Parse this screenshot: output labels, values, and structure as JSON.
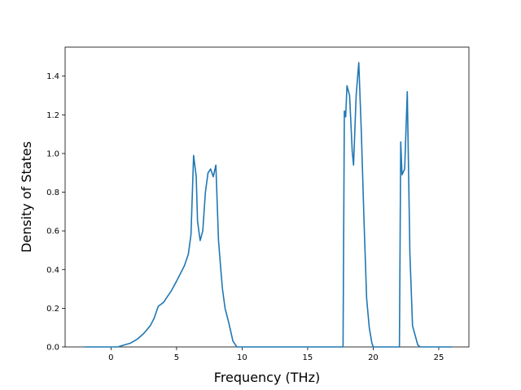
{
  "chart_data": {
    "type": "line",
    "title": "",
    "xlabel": "Frequency (THz)",
    "ylabel": "Density of States",
    "xlim": [
      -3.5,
      27.3
    ],
    "ylim": [
      0.0,
      1.55
    ],
    "xticks": [
      0,
      5,
      10,
      15,
      20,
      25
    ],
    "yticks": [
      0.0,
      0.2,
      0.4,
      0.6,
      0.8,
      1.0,
      1.2,
      1.4
    ],
    "xtick_labels": [
      "0",
      "5",
      "10",
      "15",
      "20",
      "25"
    ],
    "ytick_labels": [
      "0.0",
      "0.2",
      "0.4",
      "0.6",
      "0.8",
      "1.0",
      "1.2",
      "1.4"
    ],
    "grid": false,
    "series": [
      {
        "name": "",
        "color": "#1f77b4",
        "x": [
          -2.0,
          -1.0,
          0.0,
          0.5,
          1.0,
          1.5,
          2.0,
          2.5,
          3.0,
          3.3,
          3.6,
          3.8,
          4.0,
          4.3,
          4.6,
          5.0,
          5.3,
          5.6,
          5.9,
          6.1,
          6.3,
          6.5,
          6.6,
          6.8,
          7.0,
          7.2,
          7.4,
          7.6,
          7.8,
          8.0,
          8.2,
          8.4,
          8.5,
          8.7,
          9.0,
          9.3,
          9.6,
          9.8,
          10.5,
          17.7,
          17.8,
          17.9,
          18.0,
          18.2,
          18.4,
          18.5,
          18.7,
          18.9,
          19.1,
          19.3,
          19.5,
          19.7,
          19.9,
          20.0,
          21.0,
          22.0,
          22.1,
          22.2,
          22.4,
          22.6,
          22.8,
          23.0,
          23.2,
          23.4,
          23.6,
          24.0,
          26.0
        ],
        "y": [
          0.0,
          0.0,
          0.0,
          0.0,
          0.01,
          0.02,
          0.04,
          0.07,
          0.11,
          0.15,
          0.21,
          0.22,
          0.23,
          0.26,
          0.29,
          0.34,
          0.38,
          0.42,
          0.48,
          0.58,
          0.99,
          0.88,
          0.65,
          0.55,
          0.6,
          0.8,
          0.9,
          0.92,
          0.88,
          0.94,
          0.55,
          0.38,
          0.3,
          0.2,
          0.12,
          0.03,
          0.0,
          0.0,
          0.0,
          0.0,
          1.22,
          1.19,
          1.35,
          1.3,
          1.01,
          0.94,
          1.3,
          1.47,
          1.1,
          0.65,
          0.25,
          0.1,
          0.02,
          0.0,
          0.0,
          0.0,
          1.06,
          0.89,
          0.92,
          1.32,
          0.48,
          0.11,
          0.06,
          0.01,
          0.0,
          0.0,
          0.0
        ]
      }
    ]
  }
}
